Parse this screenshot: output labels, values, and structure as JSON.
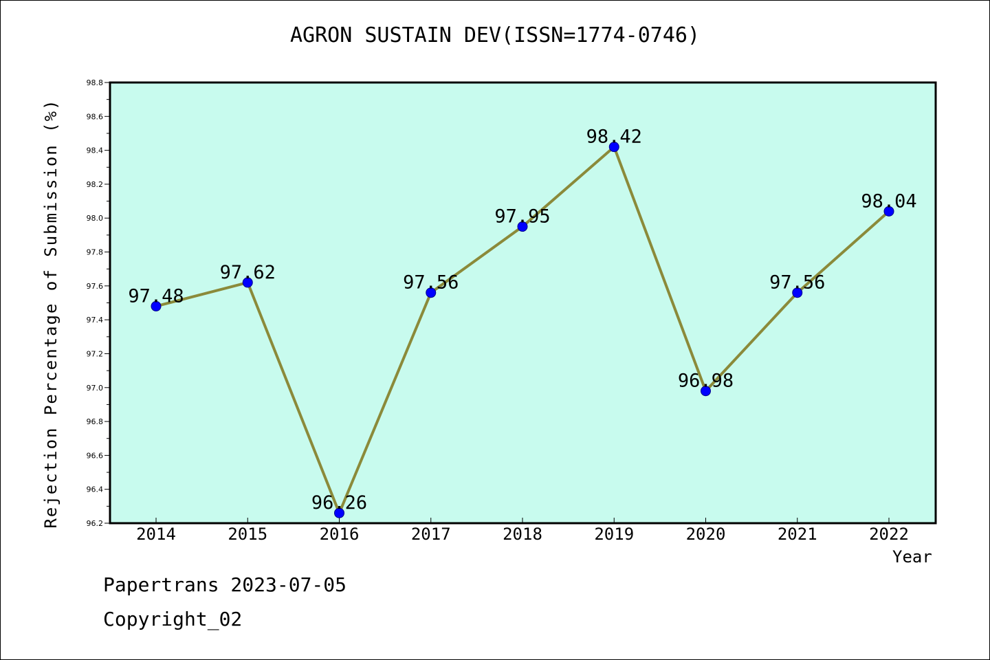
{
  "chart_data": {
    "type": "line",
    "title": "AGRON SUSTAIN DEV(ISSN=1774-0746)",
    "xlabel": "Year",
    "ylabel": "Rejection Percentage of Submission (%)",
    "categories": [
      "2014",
      "2015",
      "2016",
      "2017",
      "2018",
      "2019",
      "2020",
      "2021",
      "2022"
    ],
    "values": [
      97.48,
      97.62,
      96.26,
      97.56,
      97.95,
      98.42,
      96.98,
      97.56,
      98.04
    ],
    "data_labels": [
      "97.48",
      "97.62",
      "96.26",
      "97.56",
      "97.95",
      "98.42",
      "96.98",
      "97.56",
      "98.04"
    ],
    "ylim": [
      96.2,
      98.8
    ],
    "yticks": [
      "96.2",
      "96.4",
      "96.6",
      "96.8",
      "97.0",
      "97.2",
      "97.4",
      "97.6",
      "97.8",
      "98.0",
      "98.2",
      "98.4",
      "98.6",
      "98.8"
    ],
    "grid": false,
    "colors": {
      "line": "#8b8a3a",
      "marker": "#0000ff",
      "plot_background": "#c8fbee"
    }
  },
  "footer": {
    "source": "Papertrans 2023-07-05",
    "copyright": "Copyright_02"
  }
}
